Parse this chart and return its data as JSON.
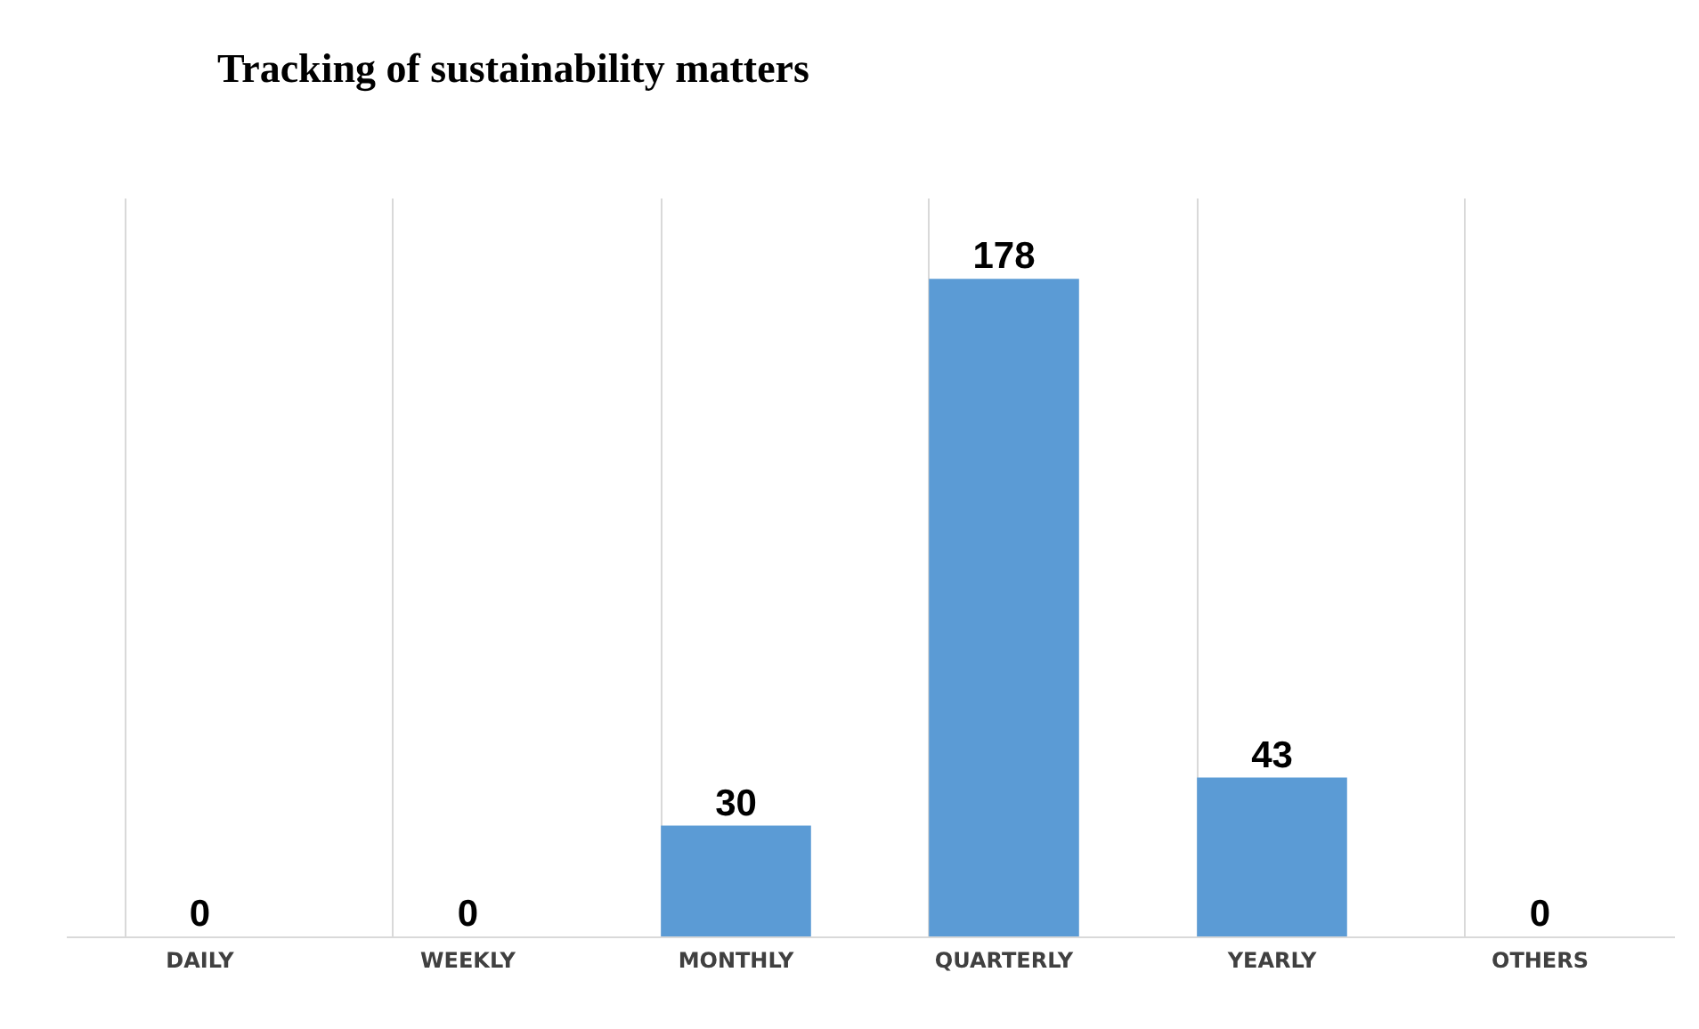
{
  "chart_data": {
    "type": "bar",
    "title": "Tracking of sustainability matters",
    "categories": [
      "DAILY",
      "WEEKLY",
      "MONTHLY",
      "QUARTERLY",
      "YEARLY",
      "OTHERS"
    ],
    "values": [
      0,
      0,
      30,
      178,
      43,
      0
    ],
    "color": "#5b9bd5",
    "data_labels": true,
    "grid": "x"
  }
}
